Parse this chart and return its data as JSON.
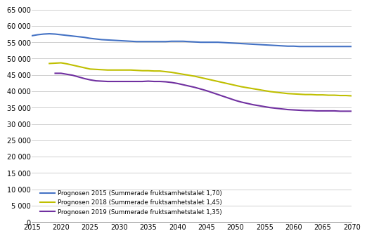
{
  "title": "",
  "xlabel": "",
  "ylabel": "",
  "xlim": [
    2015,
    2070
  ],
  "ylim": [
    0,
    65000
  ],
  "yticks": [
    0,
    5000,
    10000,
    15000,
    20000,
    25000,
    30000,
    35000,
    40000,
    45000,
    50000,
    55000,
    60000,
    65000
  ],
  "xticks": [
    2015,
    2020,
    2025,
    2030,
    2035,
    2040,
    2045,
    2050,
    2055,
    2060,
    2065,
    2070
  ],
  "series": [
    {
      "label": "Prognosen 2015 (Summerade fruktsamhetstalet 1,70)",
      "color": "#4472C4",
      "x": [
        2015,
        2016,
        2017,
        2018,
        2019,
        2020,
        2021,
        2022,
        2023,
        2024,
        2025,
        2026,
        2027,
        2028,
        2029,
        2030,
        2031,
        2032,
        2033,
        2034,
        2035,
        2036,
        2037,
        2038,
        2039,
        2040,
        2041,
        2042,
        2043,
        2044,
        2045,
        2046,
        2047,
        2048,
        2049,
        2050,
        2051,
        2052,
        2053,
        2054,
        2055,
        2056,
        2057,
        2058,
        2059,
        2060,
        2061,
        2062,
        2063,
        2064,
        2065,
        2066,
        2067,
        2068,
        2069,
        2070
      ],
      "y": [
        57000,
        57300,
        57500,
        57600,
        57500,
        57300,
        57100,
        56900,
        56700,
        56500,
        56200,
        56000,
        55800,
        55700,
        55600,
        55500,
        55400,
        55300,
        55200,
        55200,
        55200,
        55200,
        55200,
        55200,
        55300,
        55300,
        55300,
        55200,
        55100,
        55000,
        55000,
        55000,
        55000,
        54900,
        54800,
        54700,
        54600,
        54500,
        54400,
        54300,
        54200,
        54100,
        54000,
        53900,
        53800,
        53800,
        53700,
        53700,
        53700,
        53700,
        53700,
        53700,
        53700,
        53700,
        53700,
        53700
      ]
    },
    {
      "label": "Prognosen 2018 (Summerade fruktsamhetstalet 1,45)",
      "color": "#BFBF00",
      "x": [
        2018,
        2019,
        2020,
        2021,
        2022,
        2023,
        2024,
        2025,
        2026,
        2027,
        2028,
        2029,
        2030,
        2031,
        2032,
        2033,
        2034,
        2035,
        2036,
        2037,
        2038,
        2039,
        2040,
        2041,
        2042,
        2043,
        2044,
        2045,
        2046,
        2047,
        2048,
        2049,
        2050,
        2051,
        2052,
        2053,
        2054,
        2055,
        2056,
        2057,
        2058,
        2059,
        2060,
        2061,
        2062,
        2063,
        2064,
        2065,
        2066,
        2067,
        2068,
        2069,
        2070
      ],
      "y": [
        48500,
        48600,
        48700,
        48400,
        48000,
        47600,
        47200,
        46800,
        46700,
        46600,
        46500,
        46500,
        46500,
        46500,
        46500,
        46400,
        46300,
        46300,
        46200,
        46200,
        46000,
        45800,
        45500,
        45200,
        44900,
        44600,
        44200,
        43800,
        43400,
        43000,
        42600,
        42200,
        41800,
        41400,
        41100,
        40800,
        40500,
        40200,
        39900,
        39700,
        39500,
        39300,
        39200,
        39100,
        39000,
        39000,
        38900,
        38900,
        38800,
        38800,
        38700,
        38700,
        38600
      ]
    },
    {
      "label": "Prognosen 2019 (Summerade fruktsamhetstalet 1,35)",
      "color": "#7030A0",
      "x": [
        2019,
        2020,
        2021,
        2022,
        2023,
        2024,
        2025,
        2026,
        2027,
        2028,
        2029,
        2030,
        2031,
        2032,
        2033,
        2034,
        2035,
        2036,
        2037,
        2038,
        2039,
        2040,
        2041,
        2042,
        2043,
        2044,
        2045,
        2046,
        2047,
        2048,
        2049,
        2050,
        2051,
        2052,
        2053,
        2054,
        2055,
        2056,
        2057,
        2058,
        2059,
        2060,
        2061,
        2062,
        2063,
        2064,
        2065,
        2066,
        2067,
        2068,
        2069,
        2070
      ],
      "y": [
        45500,
        45500,
        45200,
        44900,
        44400,
        43900,
        43500,
        43200,
        43100,
        43000,
        43000,
        43000,
        43000,
        43000,
        43000,
        43000,
        43100,
        43000,
        43000,
        42900,
        42700,
        42400,
        42000,
        41600,
        41200,
        40700,
        40200,
        39600,
        39000,
        38400,
        37800,
        37200,
        36700,
        36300,
        35900,
        35600,
        35300,
        35000,
        34800,
        34600,
        34400,
        34300,
        34200,
        34100,
        34100,
        34000,
        34000,
        34000,
        34000,
        33900,
        33900,
        33900
      ]
    }
  ],
  "legend_loc": "lower left",
  "background_color": "#ffffff",
  "grid_color": "#c8c8c8",
  "line_width": 1.5,
  "figsize": [
    5.29,
    3.4
  ],
  "dpi": 100
}
